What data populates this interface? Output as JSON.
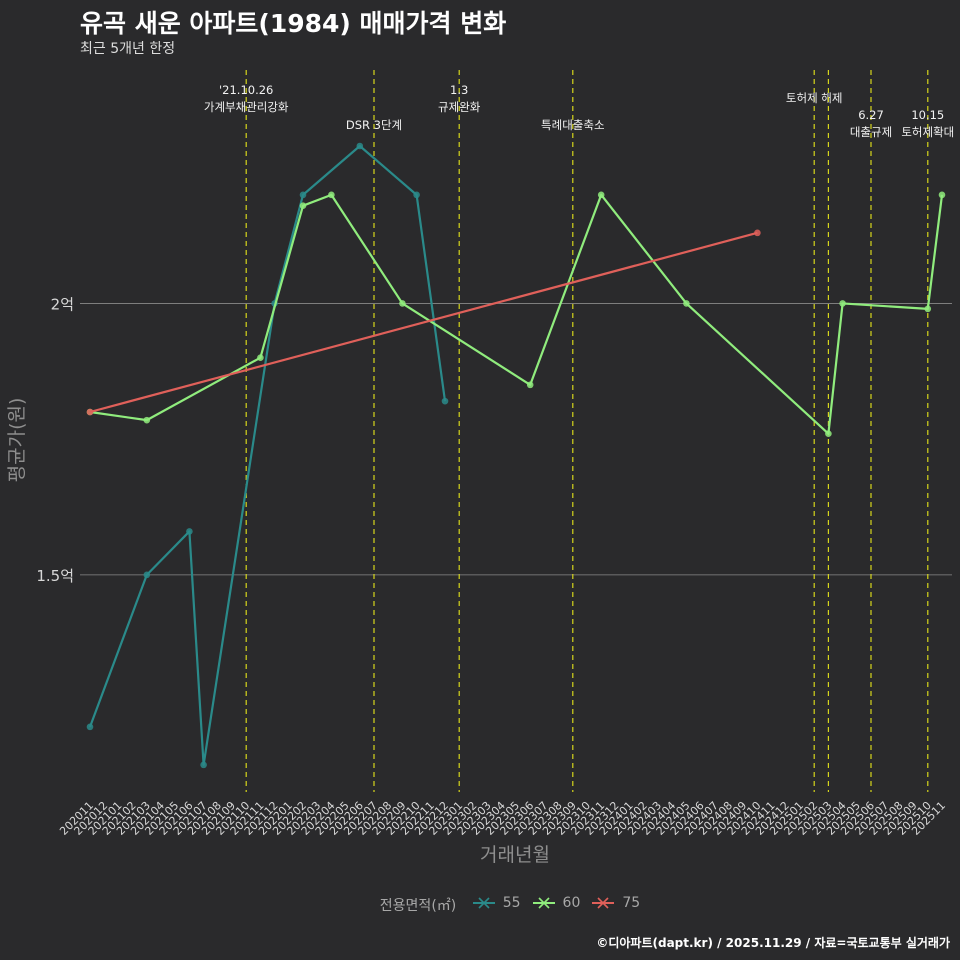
{
  "title": "유곡 새운 아파트(1984) 매매가격 변화",
  "subtitle": "최근 5개년 한정",
  "caption": "©디아파트(dapt.kr) / 2025.11.29 / 자료=국토교통부 실거래가",
  "chart_data": {
    "type": "line",
    "xlabel": "거래년월",
    "ylabel": "평균가(원)",
    "ylim": [
      110000000,
      243000000
    ],
    "yticks": [
      {
        "value": 150000000,
        "label": "1.5억"
      },
      {
        "value": 200000000,
        "label": "2억"
      }
    ],
    "grid": true,
    "categories": [
      "202011",
      "202012",
      "202101",
      "202102",
      "202103",
      "202104",
      "202105",
      "202106",
      "202107",
      "202108",
      "202109",
      "202110",
      "202111",
      "202112",
      "202201",
      "202202",
      "202203",
      "202204",
      "202205",
      "202206",
      "202207",
      "202208",
      "202209",
      "202210",
      "202211",
      "202212",
      "202301",
      "202302",
      "202303",
      "202304",
      "202305",
      "202306",
      "202307",
      "202308",
      "202309",
      "202310",
      "202311",
      "202312",
      "202401",
      "202402",
      "202403",
      "202404",
      "202405",
      "202406",
      "202407",
      "202408",
      "202409",
      "202410",
      "202411",
      "202412",
      "202501",
      "202502",
      "202503",
      "202504",
      "202505",
      "202506",
      "202507",
      "202508",
      "202509",
      "202510",
      "202511"
    ],
    "series": [
      {
        "name": "55",
        "color": "#2a8a8a",
        "points": [
          [
            "202011",
            122000000
          ],
          [
            "202103",
            150000000
          ],
          [
            "202106",
            158000000
          ],
          [
            "202107",
            115000000
          ],
          [
            "202112",
            200000000
          ],
          [
            "202202",
            220000000
          ],
          [
            "202206",
            229000000
          ],
          [
            "202210",
            220000000
          ],
          [
            "202212",
            182000000
          ]
        ]
      },
      {
        "name": "60",
        "color": "#90ec7d",
        "points": [
          [
            "202011",
            180000000
          ],
          [
            "202103",
            178500000
          ],
          [
            "202111",
            190000000
          ],
          [
            "202202",
            218000000
          ],
          [
            "202204",
            220000000
          ],
          [
            "202209",
            200000000
          ],
          [
            "202306",
            185000000
          ],
          [
            "202311",
            220000000
          ],
          [
            "202405",
            200000000
          ],
          [
            "202503",
            176000000
          ],
          [
            "202504",
            200000000
          ],
          [
            "202510",
            199000000
          ],
          [
            "202511",
            220000000
          ]
        ]
      },
      {
        "name": "75",
        "color": "#e0605a",
        "points": [
          [
            "202011",
            180000000
          ],
          [
            "202410",
            213000000
          ]
        ]
      }
    ],
    "events": [
      {
        "date": "202110",
        "lines": [
          "'21.10.26",
          "가계부채관리강화"
        ],
        "row": 1
      },
      {
        "date": "202207",
        "lines": [
          "DSR 3단계"
        ],
        "row": 3
      },
      {
        "date": "202301",
        "lines": [
          "1.3",
          "규제완화"
        ],
        "row": 1
      },
      {
        "date": "202309",
        "lines": [
          "특례대출축소"
        ],
        "row": 3
      },
      {
        "date": "202502",
        "lines": [
          "토허제 해제"
        ],
        "row": 2
      },
      {
        "date": "202503",
        "lines": [],
        "row": 0
      },
      {
        "date": "202506",
        "lines": [
          "6.27",
          "대출규제"
        ],
        "row": 3
      },
      {
        "date": "202510",
        "lines": [
          "10.15",
          "토허제확대"
        ],
        "row": 3
      }
    ],
    "legend": {
      "title": "전용면적(㎡)",
      "position": "bottom"
    }
  }
}
